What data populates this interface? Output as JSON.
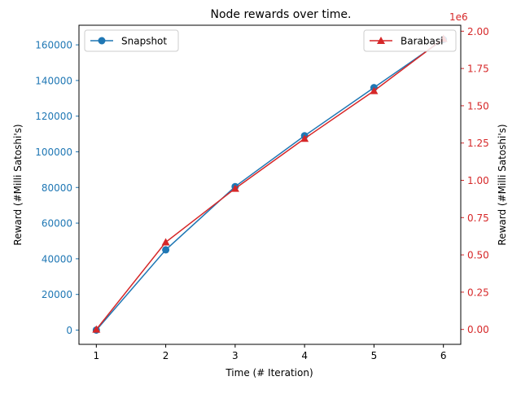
{
  "chart_data": {
    "type": "line",
    "title": "Node rewards over time.",
    "xlabel": "Time (# Iteration)",
    "x": [
      1,
      2,
      3,
      4,
      5,
      6
    ],
    "x_ticks": [
      "1",
      "2",
      "3",
      "4",
      "5",
      "6"
    ],
    "xlim": [
      0.75,
      6.25
    ],
    "grid": false,
    "y_left": {
      "label": "Reward (#Milli Satoshi's)",
      "color": "#1f77b4",
      "ylim": [
        -8000,
        171000
      ],
      "ticks": [
        0,
        20000,
        40000,
        60000,
        80000,
        100000,
        120000,
        140000,
        160000
      ],
      "tick_labels": [
        "0",
        "20000",
        "40000",
        "60000",
        "80000",
        "100000",
        "120000",
        "140000",
        "160000"
      ]
    },
    "y_right": {
      "label": "Reward (#Milli Satoshi's)",
      "color": "#d62728",
      "offset_label": "1e6",
      "ylim": [
        -0.1,
        2.04
      ],
      "ticks": [
        0,
        0.25,
        0.5,
        0.75,
        1.0,
        1.25,
        1.5,
        1.75,
        2.0
      ],
      "tick_labels": [
        "0.00",
        "0.25",
        "0.50",
        "0.75",
        "1.00",
        "1.25",
        "1.50",
        "1.75",
        "2.00"
      ]
    },
    "series": [
      {
        "name": "Snapshot",
        "axis": "left",
        "color": "#1f77b4",
        "marker": "circle",
        "values": [
          0,
          45000,
          80500,
          109000,
          136000,
          163000
        ]
      },
      {
        "name": "Barabasi",
        "axis": "right",
        "color": "#d62728",
        "marker": "triangle",
        "values": [
          0,
          0.585,
          0.945,
          1.28,
          1.6,
          1.95
        ]
      }
    ],
    "legend": {
      "left": {
        "placement": "upper-left",
        "label": "Snapshot"
      },
      "right": {
        "placement": "upper-right",
        "label": "Barabasi"
      }
    }
  }
}
